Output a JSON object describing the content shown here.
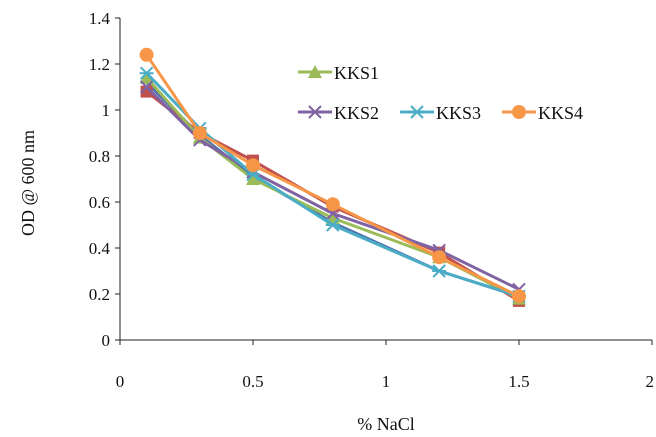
{
  "chart_data": {
    "type": "line",
    "title": "",
    "xlabel": "% NaCl",
    "ylabel": "OD @ 600 nm",
    "xlim": [
      0,
      2
    ],
    "ylim": [
      0,
      1.4
    ],
    "x_ticks": [
      "0",
      "0.5",
      "1",
      "1.5",
      "2"
    ],
    "y_ticks": [
      "0",
      "0.2",
      "0.4",
      "0.6",
      "0.8",
      "1",
      "1.2",
      "1.4"
    ],
    "grid": false,
    "legend_position": "inside-top-right",
    "x": [
      0.1,
      0.3,
      0.5,
      0.8,
      1.2,
      1.5
    ],
    "series": [
      {
        "name": "",
        "marker": "square",
        "color": "#c0504d",
        "values": [
          1.08,
          0.9,
          0.78,
          0.58,
          0.38,
          0.17
        ]
      },
      {
        "name": "KKS1",
        "marker": "triangle",
        "color": "#9bbb59",
        "values": [
          1.14,
          0.88,
          0.7,
          0.53,
          0.36,
          0.18
        ]
      },
      {
        "name": "KKS2",
        "marker": "x",
        "color": "#7f63a3",
        "values": [
          1.1,
          0.87,
          0.73,
          0.55,
          0.39,
          0.22
        ]
      },
      {
        "name": "KKS3",
        "marker": "star",
        "color": "#4bacc6",
        "values": [
          1.16,
          0.92,
          0.72,
          0.5,
          0.3,
          0.19
        ]
      },
      {
        "name": "KKS4",
        "marker": "circle",
        "color": "#f79646",
        "values": [
          1.24,
          0.9,
          0.76,
          0.59,
          0.36,
          0.19
        ]
      }
    ],
    "extra_line": {
      "color": "#4f6fae",
      "values": [
        1.12,
        0.89,
        0.71,
        0.51,
        0.3,
        0.19
      ]
    }
  }
}
